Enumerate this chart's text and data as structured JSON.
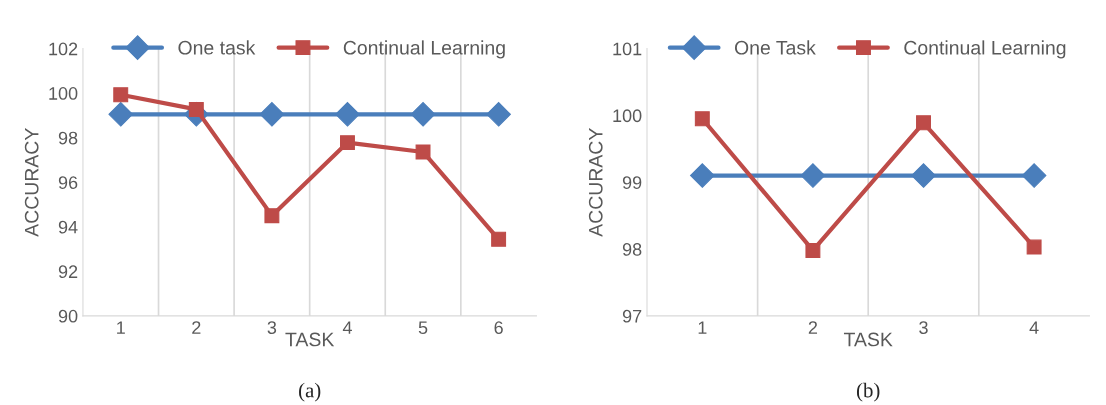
{
  "chart_data": [
    {
      "type": "line",
      "categories": [
        "1",
        "2",
        "3",
        "4",
        "5",
        "6"
      ],
      "xlabel": "TASK",
      "ylabel": "ACCURACY",
      "ylim": [
        90,
        102
      ],
      "yticks": [
        90,
        92,
        94,
        96,
        98,
        100,
        102
      ],
      "grid": "x",
      "legend": "top",
      "annotations": [
        "(a)"
      ],
      "series": [
        {
          "name": "One task",
          "color": "#4a7ebb",
          "marker": "diamond",
          "values": [
            99.05,
            99.05,
            99.05,
            99.05,
            99.05,
            99.05
          ]
        },
        {
          "name": "Continual Learning",
          "color": "#be4b48",
          "marker": "square",
          "values": [
            99.93,
            99.27,
            94.5,
            97.78,
            97.36,
            93.44
          ]
        }
      ]
    },
    {
      "type": "line",
      "categories": [
        "1",
        "2",
        "3",
        "4"
      ],
      "xlabel": "TASK",
      "ylabel": "ACCURACY",
      "ylim": [
        97,
        101
      ],
      "yticks": [
        97,
        98,
        99,
        100,
        101
      ],
      "grid": "x",
      "legend": "top",
      "annotations": [
        "(b)"
      ],
      "series": [
        {
          "name": "One Task",
          "color": "#4a7ebb",
          "marker": "diamond",
          "values": [
            99.1,
            99.1,
            99.1,
            99.1
          ]
        },
        {
          "name": "Continual Learning",
          "color": "#be4b48",
          "marker": "square",
          "values": [
            99.95,
            97.98,
            99.89,
            98.03
          ]
        }
      ]
    }
  ]
}
